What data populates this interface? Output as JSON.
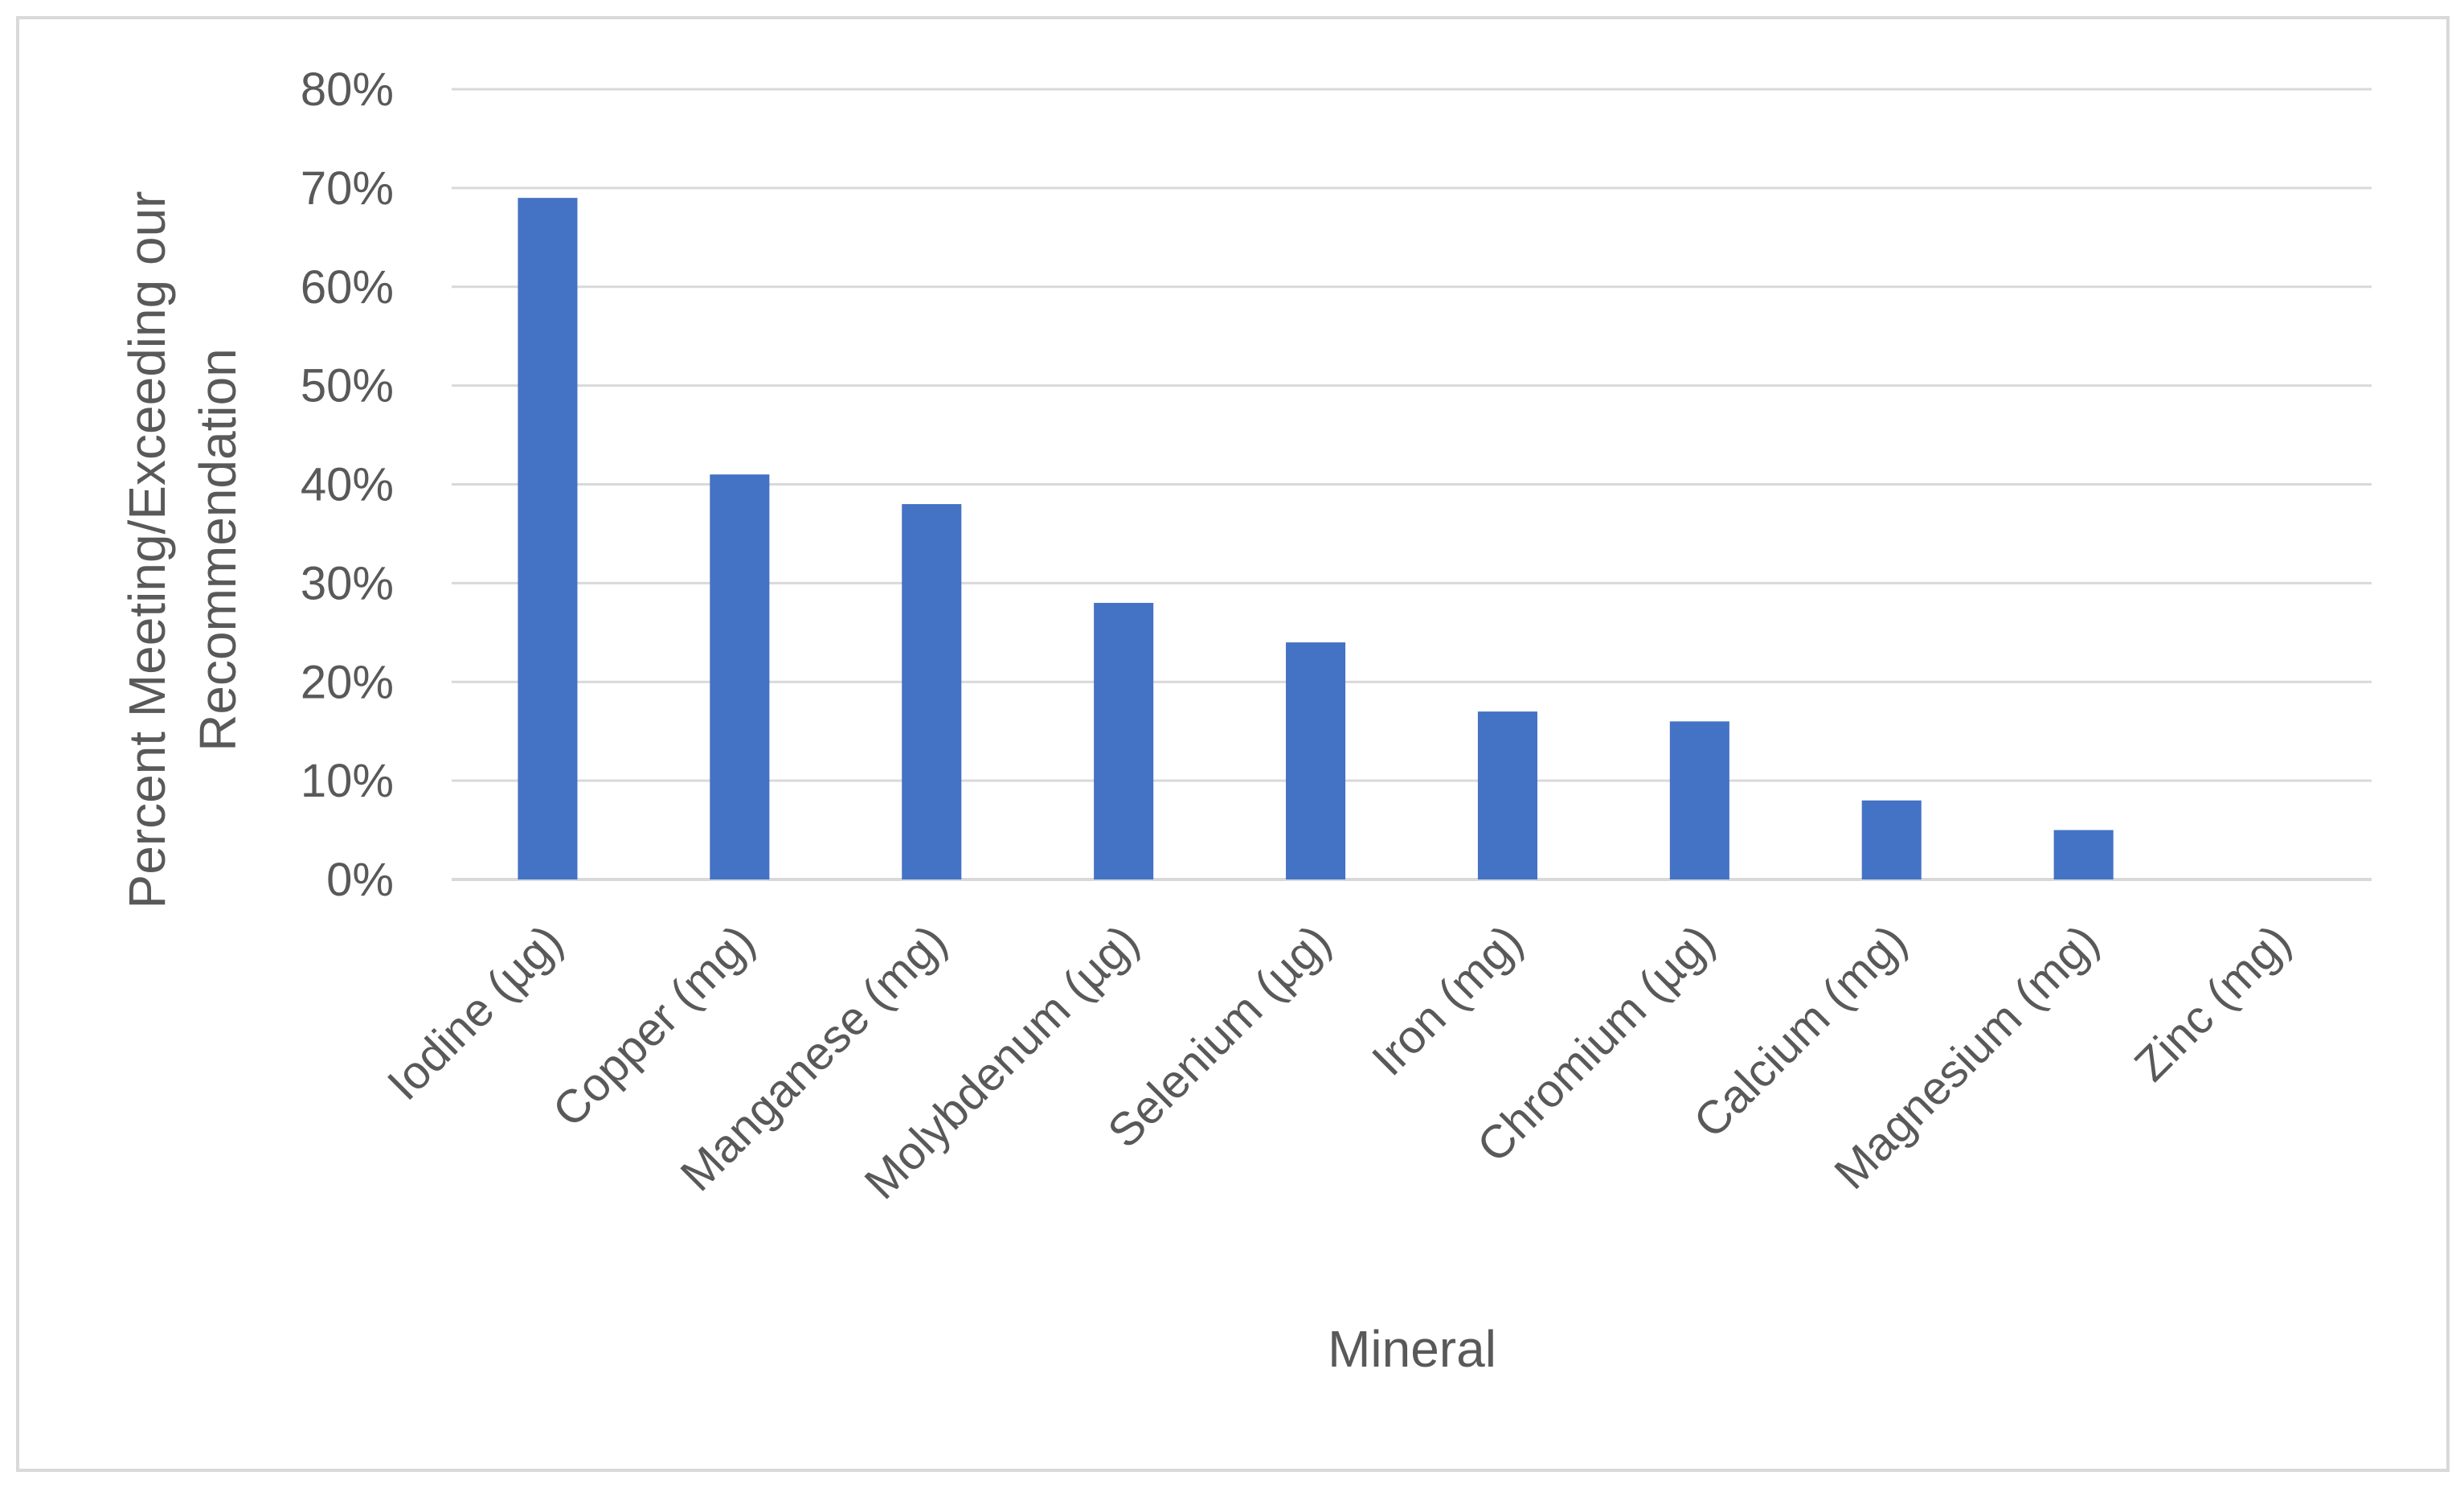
{
  "chart_data": {
    "type": "bar",
    "title": "",
    "categories": [
      "Iodine (µg)",
      "Copper (mg)",
      "Manganese (mg)",
      "Molybdenum (µg)",
      "Selenium (µg)",
      "Iron (mg)",
      "Chromium (µg)",
      "Calcium (mg)",
      "Magnesium (mg)",
      "Zinc (mg)"
    ],
    "values": [
      69,
      41,
      38,
      28,
      24,
      17,
      16,
      8,
      5,
      0
    ],
    "value_unit": "%",
    "xlabel": "Mineral",
    "ylabel_lines": [
      "Percent Meeting/Exceeding our",
      "Recommendation"
    ],
    "ylim": [
      0,
      80
    ],
    "y_ticks": [
      0,
      10,
      20,
      30,
      40,
      50,
      60,
      70,
      80
    ],
    "y_tick_labels": [
      "0%",
      "10%",
      "20%",
      "30%",
      "40%",
      "50%",
      "60%",
      "70%",
      "80%"
    ],
    "grid": true,
    "legend": "none",
    "bar_color": "#4472C4",
    "grid_color": "#D9D9D9",
    "text_color": "#595959",
    "border_color": "#D9D9D9"
  }
}
